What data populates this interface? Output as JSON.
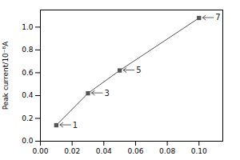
{
  "chart_data": {
    "type": "line",
    "x": [
      0.01,
      0.03,
      0.05,
      0.1
    ],
    "values": [
      0.14,
      0.42,
      0.62,
      1.08
    ],
    "color": "#555555",
    "marker": "square",
    "ylabel": "Peak current/10⁻⁸A",
    "xlim": [
      0.0,
      0.115
    ],
    "ylim": [
      0.0,
      1.15
    ],
    "xticks": [
      {
        "value": 0.0,
        "label": "0.00"
      },
      0.02,
      0.04,
      0.06,
      0.08,
      {
        "value": 0.1,
        "label": "0.10"
      }
    ],
    "yticks": [
      {
        "value": 0.0,
        "label": "0.0"
      },
      0.2,
      0.4,
      0.6,
      0.8,
      {
        "value": 1.0,
        "label": "1.0"
      }
    ],
    "annotations": [
      {
        "text": "1",
        "x": 0.01,
        "y": 0.14
      },
      {
        "text": "3",
        "x": 0.03,
        "y": 0.42
      },
      {
        "text": "5",
        "x": 0.05,
        "y": 0.62
      },
      {
        "text": "7",
        "x": 0.1,
        "y": 1.08
      }
    ]
  }
}
